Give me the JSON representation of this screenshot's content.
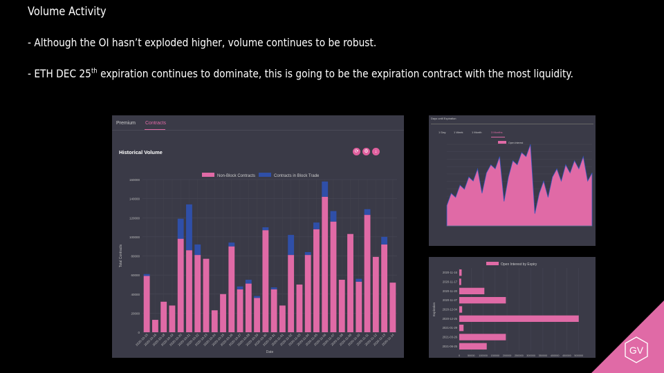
{
  "slide": {
    "title": "Volume Activity",
    "bullet1": "- Although the OI hasn’t exploded higher, volume continues to be robust.",
    "bullet2_pre": "- ETH DEC 25",
    "bullet2_sup": "th",
    "bullet2_post": " expiration continues to dominate, this is going to be the expiration contract with the most liquidity.",
    "logo_text": "GV"
  },
  "volume_panel": {
    "tabs": [
      "Premium",
      "Contracts"
    ],
    "active_tab": "Contracts",
    "title": "Historical Volume",
    "buttons": [
      "refresh-icon",
      "settings-icon",
      "download-icon"
    ]
  },
  "oi_panel": {
    "header": "Days until Expiration",
    "tabs": [
      "1 Day",
      "1 Week",
      "1 Month",
      "3 Months"
    ],
    "active_tab": "3 Months"
  },
  "chart_data": [
    {
      "type": "bar",
      "stacked": true,
      "title": "Historical Volume",
      "xlabel": "Date",
      "ylabel": "Total Contracts",
      "ylim": [
        0,
        160000
      ],
      "yticks": [
        0,
        20000,
        40000,
        60000,
        80000,
        100000,
        120000,
        140000,
        160000
      ],
      "legend_position": "top",
      "categories": [
        "2020-10-15",
        "2020-10-16",
        "2020-10-18",
        "2020-10-19",
        "2020-10-20",
        "2020-10-21",
        "2020-10-22",
        "2020-10-23",
        "2020-10-24",
        "2020-10-25",
        "2020-10-26",
        "2020-10-27",
        "2020-10-28",
        "2020-10-29",
        "2020-10-30",
        "2020-10-31",
        "2020-11-01",
        "2020-11-02",
        "2020-11-03",
        "2020-11-04",
        "2020-11-05",
        "2020-11-06",
        "2020-11-07",
        "2020-11-08",
        "2020-11-09",
        "2020-11-10",
        "2020-11-11",
        "2020-11-12",
        "2020-11-13",
        "2020-11-14"
      ],
      "series": [
        {
          "name": "Non-Block Contracts",
          "color": "#e06aa6",
          "values": [
            59000,
            13000,
            32000,
            28000,
            98000,
            86000,
            81000,
            77000,
            23000,
            40000,
            90000,
            45000,
            51000,
            36000,
            107000,
            45000,
            28000,
            81000,
            50000,
            81000,
            108000,
            142000,
            116000,
            55000,
            103000,
            53000,
            123000,
            79000,
            92000,
            52000
          ]
        },
        {
          "name": "Contracts in Block Trade",
          "color": "#2f4fa8",
          "values": [
            2000,
            0,
            0,
            0,
            21000,
            48000,
            11000,
            0,
            0,
            0,
            4000,
            3000,
            4000,
            2000,
            3000,
            2000,
            0,
            21000,
            0,
            3000,
            7000,
            16000,
            11000,
            0,
            0,
            3000,
            6000,
            0,
            8000,
            0
          ]
        }
      ]
    },
    {
      "type": "area",
      "legend": "Open Interest",
      "legend_position": "top",
      "color": "#e06aa6",
      "ylim": [
        0,
        1100000
      ],
      "description_note": "open interest over 3 months, rising intraperiod and resetting at expiries",
      "values": [
        0.25,
        0.4,
        0.35,
        0.5,
        0.45,
        0.6,
        0.55,
        0.7,
        0.4,
        0.65,
        0.75,
        0.7,
        0.85,
        0.3,
        0.6,
        0.8,
        0.75,
        0.9,
        0.85,
        1.0,
        0.15,
        0.4,
        0.55,
        0.35,
        0.6,
        0.7,
        0.55,
        0.75,
        0.65,
        0.8,
        0.7,
        0.85,
        0.55,
        0.65
      ]
    },
    {
      "type": "bar",
      "orientation": "horizontal",
      "title": "Open Interest by Expiry",
      "ylabel": "Expiration",
      "legend_position": "top",
      "color": "#e06aa6",
      "xlim": [
        0,
        550000
      ],
      "xticks": [
        0,
        50000,
        100000,
        150000,
        200000,
        250000,
        300000,
        350000,
        400000,
        450000,
        500000
      ],
      "categories": [
        "2020-11-16",
        "2020-11-17",
        "2020-11-20",
        "2020-11-27",
        "2020-12-04",
        "2020-12-25",
        "2021-01-29",
        "2021-03-26",
        "2021-06-25"
      ],
      "values": [
        10000,
        8000,
        105000,
        195000,
        12000,
        500000,
        18000,
        195000,
        115000
      ]
    }
  ]
}
